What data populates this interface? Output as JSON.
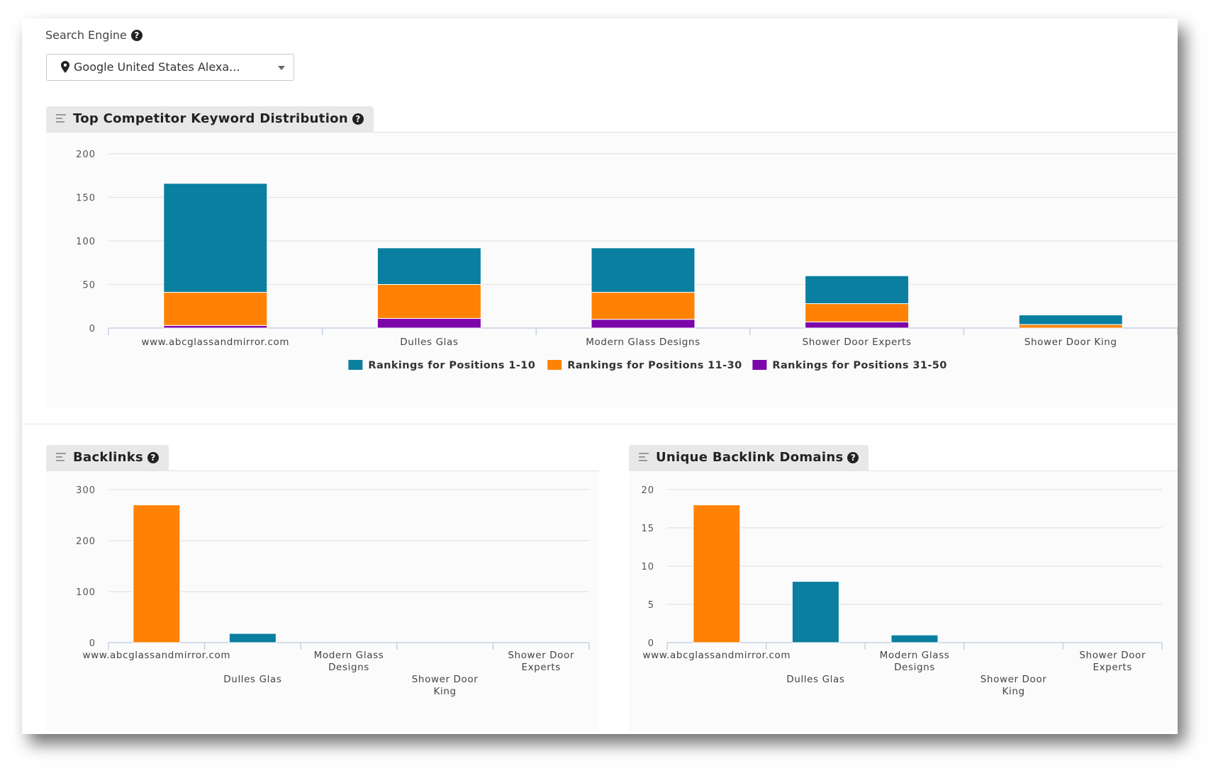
{
  "search_engine": {
    "label": "Search Engine",
    "selected_value": "Google United States Alexa...",
    "pin_icon": "map-marker-icon",
    "help_icon": "question-circle-icon"
  },
  "colors": {
    "positions_1_10": "#0a7fa0",
    "positions_11_30": "#ff8205",
    "positions_31_50": "#7c06aa",
    "gridline": "#e3e3e3",
    "axis": "#c6d1e4"
  },
  "panels": {
    "distribution": {
      "title": "Top Competitor Keyword Distribution"
    },
    "backlinks": {
      "title": "Backlinks"
    },
    "domains": {
      "title": "Unique Backlink Domains"
    }
  },
  "chart_data": [
    {
      "id": "distribution",
      "type": "bar",
      "stacked": true,
      "categories": [
        "www.abcglassandmirror.com",
        "Dulles Glas",
        "Modern Glass Designs",
        "Shower Door Experts",
        "Shower Door King"
      ],
      "series": [
        {
          "name": "Rankings for Positions 1-10",
          "color": "#0a7fa0",
          "values": [
            125,
            42,
            51,
            32,
            11
          ]
        },
        {
          "name": "Rankings for Positions 11-30",
          "color": "#ff8205",
          "values": [
            38,
            39,
            31,
            21,
            4
          ]
        },
        {
          "name": "Rankings for Positions 31-50",
          "color": "#7c06aa",
          "values": [
            3,
            11,
            10,
            7,
            0
          ]
        }
      ],
      "ylim": [
        0,
        200
      ],
      "yticks": [
        0,
        50,
        100,
        150,
        200
      ],
      "grid": true,
      "legend": "bottom-center"
    },
    {
      "id": "backlinks",
      "type": "bar",
      "categories": [
        "www.abcglassandmirror.com",
        "Dulles Glas",
        "Modern Glass Designs",
        "Shower Door King",
        "Shower Door Experts"
      ],
      "values": [
        270,
        18,
        0,
        0,
        0
      ],
      "colors": [
        "#ff8205",
        "#0a7fa0",
        "#0a7fa0",
        "#0a7fa0",
        "#0a7fa0"
      ],
      "ylim": [
        0,
        300
      ],
      "yticks": [
        0,
        100,
        200,
        300
      ],
      "grid": true
    },
    {
      "id": "domains",
      "type": "bar",
      "categories": [
        "www.abcglassandmirror.com",
        "Dulles Glas",
        "Modern Glass Designs",
        "Shower Door King",
        "Shower Door Experts"
      ],
      "values": [
        18,
        8,
        1,
        0,
        0
      ],
      "colors": [
        "#ff8205",
        "#0a7fa0",
        "#0a7fa0",
        "#0a7fa0",
        "#0a7fa0"
      ],
      "ylim": [
        0,
        20
      ],
      "yticks": [
        0,
        5,
        10,
        15,
        20
      ],
      "grid": true
    }
  ]
}
